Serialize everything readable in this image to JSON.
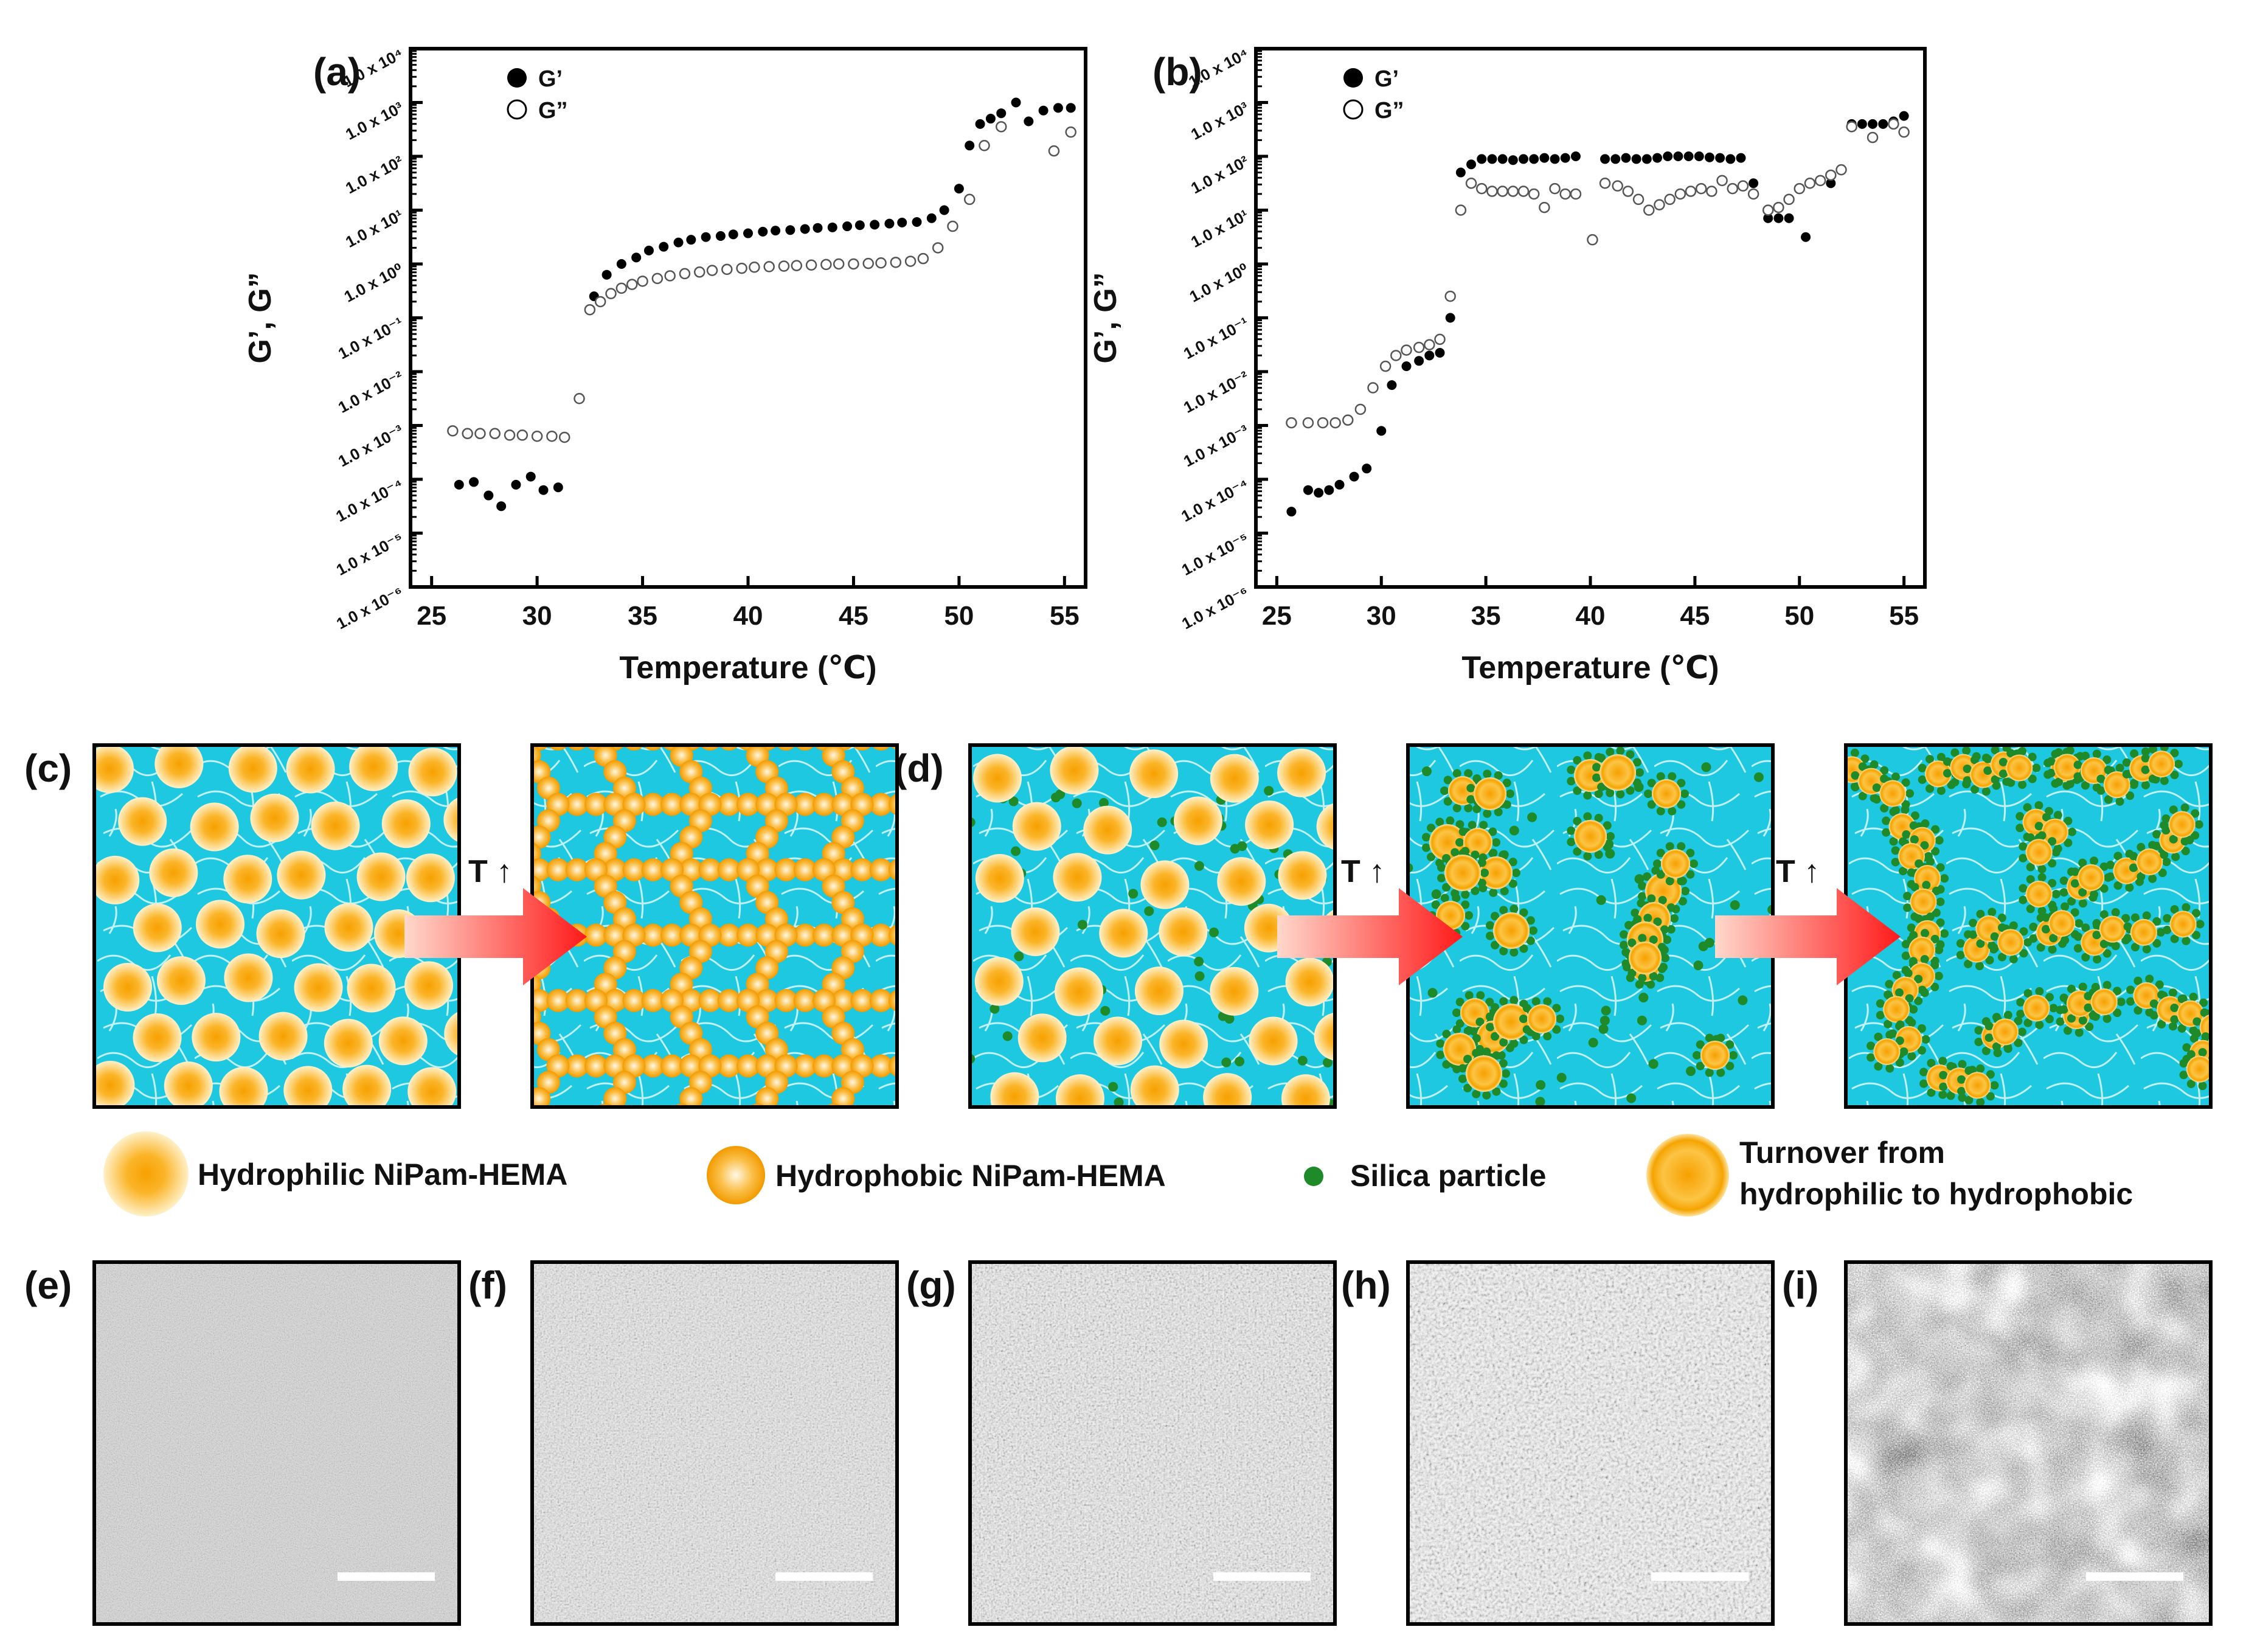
{
  "chart_data": [
    {
      "type": "scatter",
      "panel": "(a)",
      "xlabel": "Temperature (℃)",
      "ylabel": "G’, G”",
      "xlim": [
        24,
        56
      ],
      "ylim_log10": [
        -6,
        4
      ],
      "xticks": [
        "25",
        "30",
        "35",
        "40",
        "45",
        "50",
        "55"
      ],
      "yticks": [
        "1.0 x 10⁴",
        "1.0 x 10³",
        "1.0 x 10²",
        "1.0 x 10¹",
        "1.0 x 10⁰",
        "1.0 x 10⁻¹",
        "1.0 x 10⁻²",
        "1.0 x 10⁻³",
        "1.0 x 10⁻⁴",
        "1.0 x 10⁻⁵",
        "1.0 x 10⁻⁶"
      ],
      "series": [
        {
          "name": "G’",
          "marker": "filled",
          "x": [
            26.3,
            27.0,
            27.7,
            28.3,
            29.0,
            29.7,
            30.3,
            31.0,
            32.7,
            33.3,
            34.0,
            34.7,
            35.3,
            36.0,
            36.7,
            37.3,
            38.0,
            38.7,
            39.3,
            40.0,
            40.7,
            41.3,
            42.0,
            42.7,
            43.3,
            44.0,
            44.7,
            45.3,
            46.0,
            46.7,
            47.3,
            48.0,
            48.7,
            49.3,
            50.0,
            50.5,
            51.0,
            51.5,
            52.0,
            52.7,
            53.3,
            54.0,
            54.7,
            55.3
          ],
          "log10_y": [
            -4.1,
            -4.05,
            -4.3,
            -4.5,
            -4.1,
            -3.95,
            -4.2,
            -4.15,
            -0.6,
            -0.2,
            0.0,
            0.12,
            0.25,
            0.32,
            0.4,
            0.45,
            0.5,
            0.52,
            0.55,
            0.57,
            0.6,
            0.62,
            0.63,
            0.65,
            0.67,
            0.68,
            0.7,
            0.72,
            0.73,
            0.75,
            0.77,
            0.78,
            0.85,
            1.0,
            1.4,
            2.2,
            2.6,
            2.7,
            2.8,
            3.0,
            2.65,
            2.85,
            2.9,
            2.9
          ]
        },
        {
          "name": "G”",
          "marker": "open",
          "x": [
            26.0,
            26.7,
            27.3,
            28.0,
            28.7,
            29.3,
            30.0,
            30.7,
            31.3,
            32.0,
            32.5,
            33.0,
            33.5,
            34.0,
            34.5,
            35.0,
            35.7,
            36.3,
            37.0,
            37.7,
            38.3,
            39.0,
            39.7,
            40.3,
            41.0,
            41.7,
            42.3,
            43.0,
            43.7,
            44.3,
            45.0,
            45.7,
            46.3,
            47.0,
            47.7,
            48.3,
            49.0,
            49.7,
            50.5,
            51.2,
            52.0,
            54.5,
            55.3
          ],
          "log10_y": [
            -3.1,
            -3.15,
            -3.15,
            -3.15,
            -3.18,
            -3.18,
            -3.2,
            -3.2,
            -3.22,
            -2.5,
            -0.85,
            -0.7,
            -0.55,
            -0.45,
            -0.38,
            -0.32,
            -0.27,
            -0.22,
            -0.18,
            -0.15,
            -0.12,
            -0.1,
            -0.08,
            -0.06,
            -0.05,
            -0.04,
            -0.03,
            -0.02,
            -0.01,
            0.0,
            0.0,
            0.01,
            0.02,
            0.03,
            0.05,
            0.1,
            0.3,
            0.7,
            1.2,
            2.2,
            2.55,
            2.1,
            2.45
          ]
        }
      ],
      "legend": [
        "G’",
        "G”"
      ]
    },
    {
      "type": "scatter",
      "panel": "(b)",
      "xlabel": "Temperature (℃)",
      "ylabel": "G’, G”",
      "xlim": [
        24,
        56
      ],
      "ylim_log10": [
        -6,
        4
      ],
      "xticks": [
        "25",
        "30",
        "35",
        "40",
        "45",
        "50",
        "55"
      ],
      "yticks": [
        "1.0 x 10⁴",
        "1.0 x 10³",
        "1.0 x 10²",
        "1.0 x 10¹",
        "1.0 x 10⁰",
        "1.0 x 10⁻¹",
        "1.0 x 10⁻²",
        "1.0 x 10⁻³",
        "1.0 x 10⁻⁴",
        "1.0 x 10⁻⁵",
        "1.0 x 10⁻⁶"
      ],
      "series": [
        {
          "name": "G’",
          "marker": "filled",
          "x": [
            25.7,
            26.5,
            27.0,
            27.5,
            28.0,
            28.7,
            29.3,
            30.0,
            30.5,
            31.2,
            31.8,
            32.3,
            32.8,
            33.3,
            33.8,
            34.3,
            34.8,
            35.3,
            35.8,
            36.3,
            36.8,
            37.3,
            37.8,
            38.3,
            38.8,
            39.3,
            40.7,
            41.2,
            41.7,
            42.2,
            42.7,
            43.2,
            43.7,
            44.2,
            44.7,
            45.2,
            45.7,
            46.2,
            46.7,
            47.2,
            47.8,
            48.5,
            49.0,
            49.5,
            50.3,
            51.5,
            52.5,
            53.0,
            53.5,
            54.0,
            54.5,
            55.0
          ],
          "log10_y": [
            -4.6,
            -4.2,
            -4.25,
            -4.2,
            -4.1,
            -3.95,
            -3.8,
            -3.1,
            -2.25,
            -1.9,
            -1.8,
            -1.7,
            -1.65,
            -1.0,
            1.7,
            1.85,
            1.95,
            1.95,
            1.95,
            1.93,
            1.95,
            1.95,
            1.97,
            1.95,
            1.97,
            2.0,
            1.95,
            1.95,
            1.97,
            1.95,
            1.95,
            1.97,
            2.0,
            2.0,
            2.0,
            2.0,
            1.98,
            1.97,
            1.95,
            1.97,
            1.5,
            0.85,
            0.85,
            0.85,
            0.5,
            1.5,
            2.6,
            2.6,
            2.6,
            2.6,
            2.65,
            2.75
          ]
        },
        {
          "name": "G”",
          "marker": "open",
          "x": [
            25.7,
            26.5,
            27.2,
            27.8,
            28.4,
            29.0,
            29.6,
            30.2,
            30.7,
            31.2,
            31.8,
            32.3,
            32.8,
            33.3,
            33.8,
            34.3,
            34.8,
            35.3,
            35.8,
            36.3,
            36.8,
            37.3,
            37.8,
            38.3,
            38.8,
            39.3,
            40.1,
            40.7,
            41.3,
            41.8,
            42.3,
            42.8,
            43.3,
            43.8,
            44.3,
            44.8,
            45.3,
            45.8,
            46.3,
            46.8,
            47.3,
            47.8,
            48.5,
            49.0,
            49.5,
            50.0,
            50.5,
            51.0,
            51.5,
            52.0,
            52.5,
            53.5,
            54.5,
            55.0
          ],
          "log10_y": [
            -2.95,
            -2.95,
            -2.95,
            -2.95,
            -2.9,
            -2.7,
            -2.3,
            -1.9,
            -1.7,
            -1.6,
            -1.55,
            -1.5,
            -1.4,
            -0.6,
            1.0,
            1.5,
            1.4,
            1.35,
            1.35,
            1.35,
            1.35,
            1.3,
            1.05,
            1.4,
            1.3,
            1.3,
            0.45,
            1.5,
            1.45,
            1.35,
            1.2,
            1.0,
            1.1,
            1.2,
            1.3,
            1.35,
            1.4,
            1.35,
            1.55,
            1.4,
            1.45,
            1.3,
            1.0,
            1.05,
            1.2,
            1.4,
            1.5,
            1.55,
            1.65,
            1.75,
            2.55,
            2.35,
            2.6,
            2.45
          ]
        }
      ],
      "legend": [
        "G’",
        "G”"
      ]
    }
  ],
  "labels": {
    "a": "(a)",
    "b": "(b)",
    "c": "(c)",
    "d": "(d)",
    "e": "(e)",
    "f": "(f)",
    "g": "(g)",
    "h": "(h)",
    "i": "(i)"
  },
  "arrow_text": "T ↑",
  "key": {
    "hydrophilic": "Hydrophilic NiPam-HEMA",
    "hydrophobic": "Hydrophobic NiPam-HEMA",
    "silica": "Silica particle",
    "turnover_1": "Turnover from",
    "turnover_2": "hydrophilic to hydrophobic"
  },
  "colors": {
    "water": "#1ec8e0",
    "particle_outer": "#fde7a8",
    "particle_inner": "#f7a300",
    "silica": "#1e8a2a",
    "arrow": "#ff2020"
  }
}
